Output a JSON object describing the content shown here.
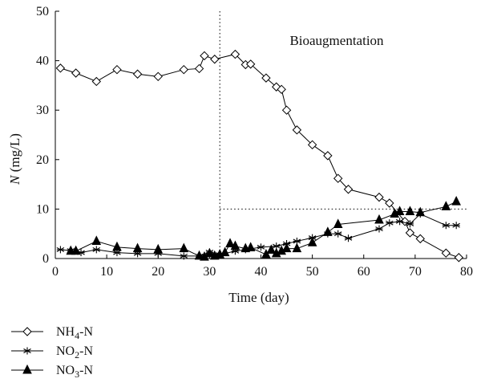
{
  "chart_data": {
    "type": "line",
    "xlabel": "Time (day)",
    "ylabel_var": "N",
    "ylabel_unit": " (mg/L)",
    "xlim": [
      0,
      80
    ],
    "ylim": [
      0,
      50
    ],
    "xticks": [
      0,
      10,
      20,
      30,
      40,
      50,
      60,
      70,
      80
    ],
    "yticks": [
      0,
      10,
      20,
      30,
      40,
      50
    ],
    "grid": false,
    "legend_position": "bottom-left",
    "annotation": "Bioaugmentation",
    "divider": {
      "x": 32,
      "y": 10
    },
    "series": [
      {
        "name": "NH4-N",
        "label_main": "NH",
        "label_sub": "4",
        "label_rest": "-N",
        "marker": "diamond",
        "color": "#000000",
        "x": [
          1,
          4,
          8,
          12,
          16,
          20,
          25,
          28,
          29,
          31,
          35,
          37,
          38,
          41,
          43,
          44,
          45,
          47,
          50,
          53,
          55,
          57,
          63,
          65,
          68,
          69,
          71,
          76,
          78.5
        ],
        "y": [
          38.5,
          37.5,
          35.8,
          38.2,
          37.3,
          36.8,
          38.2,
          38.4,
          41,
          40.3,
          41.3,
          39.2,
          39.3,
          36.5,
          34.7,
          34.2,
          30,
          26,
          23,
          20.8,
          16.2,
          14,
          12.4,
          11.2,
          7.5,
          5.2,
          4,
          1.1,
          0.2
        ]
      },
      {
        "name": "NO2-N",
        "label_main": "NO",
        "label_sub": "2",
        "label_rest": "-N",
        "marker": "star",
        "color": "#000000",
        "x": [
          1,
          3,
          5,
          8,
          12,
          16,
          20,
          25,
          28,
          30,
          32,
          35,
          37,
          40,
          43,
          45,
          47,
          50,
          53,
          55,
          57,
          63,
          65,
          67,
          69,
          71,
          76,
          78
        ],
        "y": [
          1.8,
          1.6,
          1.2,
          1.8,
          1.2,
          1.0,
          1.0,
          0.5,
          0.5,
          1.3,
          0.8,
          1.5,
          1.8,
          2.3,
          2.5,
          3.0,
          3.5,
          4.2,
          5.0,
          5.0,
          4.1,
          6.0,
          7.2,
          7.5,
          7.0,
          9.0,
          6.7,
          6.7
        ]
      },
      {
        "name": "NO3-N",
        "label_main": "NO",
        "label_sub": "3",
        "label_rest": "-N",
        "marker": "triangle",
        "color": "#000000",
        "x": [
          3,
          4,
          8,
          12,
          16,
          20,
          25,
          28,
          29,
          30,
          31,
          32,
          33,
          34,
          35,
          37,
          38,
          41,
          42,
          43,
          44,
          45,
          47,
          50,
          53,
          55,
          63,
          66,
          67,
          69,
          71,
          76,
          78
        ],
        "y": [
          1.5,
          1.5,
          3.5,
          2.3,
          2.0,
          1.8,
          2.0,
          0.5,
          0.3,
          1.0,
          0.5,
          0.8,
          1.2,
          3.0,
          2.5,
          2.0,
          2.2,
          0.8,
          1.7,
          1.0,
          1.5,
          2.0,
          2.0,
          3.2,
          5.3,
          6.9,
          7.8,
          9.0,
          9.5,
          9.5,
          9.3,
          10.5,
          11.5
        ]
      }
    ]
  }
}
